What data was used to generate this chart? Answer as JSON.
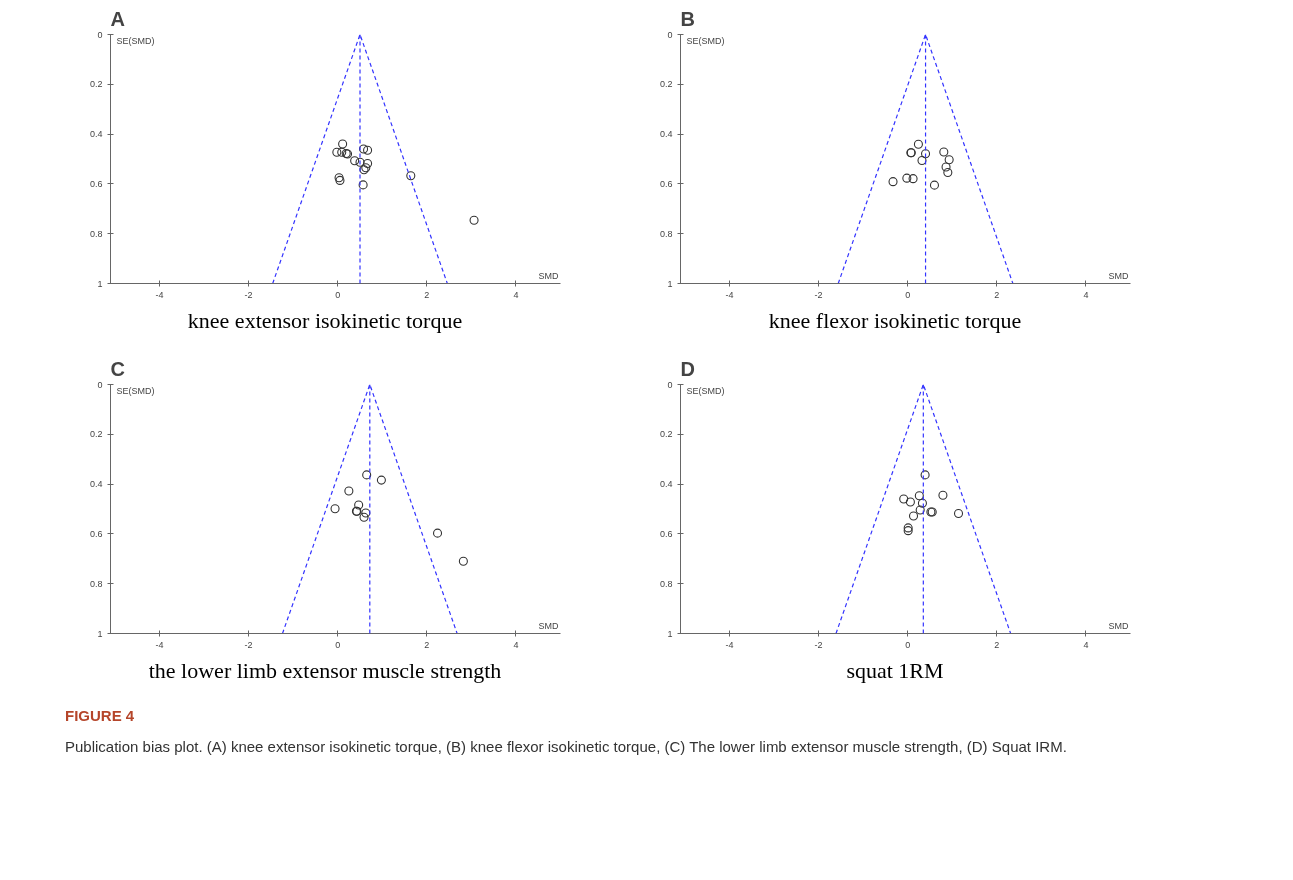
{
  "chart_data": [
    {
      "type": "scatter",
      "title": "A",
      "xlabel": "SMD",
      "ylabel": "SE(SMD)",
      "annotations": [
        "knee extensor isokinetic torque"
      ],
      "xlim": [
        -5.1,
        5
      ],
      "ylim": [
        1,
        0
      ],
      "xticks": [
        -4,
        -2,
        0,
        2,
        4
      ],
      "yticks": [
        0,
        0.2,
        0.4,
        0.6,
        0.8,
        1
      ],
      "grid": false,
      "series": [
        {
          "marker": "circle",
          "color": "#333333",
          "x": [
            0.11,
            -0.02,
            0.09,
            0.19,
            0.22,
            0.58,
            0.67,
            0.38,
            0.5,
            0.67,
            0.63,
            0.59,
            0.03,
            0.05,
            0.57,
            1.64,
            3.06
          ],
          "values": [
            0.44,
            0.473,
            0.473,
            0.478,
            0.48,
            0.46,
            0.465,
            0.507,
            0.513,
            0.518,
            0.535,
            0.543,
            0.575,
            0.586,
            0.604,
            0.567,
            0.746
          ]
        },
        {
          "type": "line",
          "color": "#3333ff",
          "line_style": "dashed",
          "x": [
            -1.46,
            0.5,
            2.46
          ],
          "values": [
            1,
            0,
            1
          ]
        }
      ],
      "ref_lines": [
        {
          "axis": "x",
          "value": 0.5,
          "color": "#3333ff",
          "line_style": "dashed"
        }
      ]
    },
    {
      "type": "scatter",
      "title": "B",
      "xlabel": "SMD",
      "ylabel": "SE(SMD)",
      "annotations": [
        "knee flexor isokinetic torque"
      ],
      "xlim": [
        -5.1,
        5
      ],
      "ylim": [
        1,
        0
      ],
      "xticks": [
        -4,
        -2,
        0,
        2,
        4
      ],
      "yticks": [
        0,
        0.2,
        0.4,
        0.6,
        0.8,
        1
      ],
      "grid": false,
      "series": [
        {
          "marker": "circle",
          "color": "#333333",
          "x": [
            0.24,
            0.07,
            0.08,
            0.4,
            0.32,
            0.81,
            0.93,
            0.86,
            0.9,
            -0.33,
            -0.02,
            0.12,
            0.6
          ],
          "values": [
            0.441,
            0.475,
            0.475,
            0.479,
            0.506,
            0.472,
            0.503,
            0.532,
            0.554,
            0.591,
            0.577,
            0.579,
            0.605
          ]
        },
        {
          "type": "line",
          "color": "#3333ff",
          "line_style": "dashed",
          "x": [
            -1.56,
            0.4,
            2.36
          ],
          "values": [
            1,
            0,
            1
          ]
        }
      ],
      "ref_lines": [
        {
          "axis": "x",
          "value": 0.4,
          "color": "#3333ff",
          "line_style": "dashed"
        }
      ]
    },
    {
      "type": "scatter",
      "title": "C",
      "xlabel": "SMD",
      "ylabel": "SE(SMD)",
      "annotations": [
        "the lower limb extensor muscle strength"
      ],
      "xlim": [
        -5.1,
        5
      ],
      "ylim": [
        1,
        0
      ],
      "xticks": [
        -4,
        -2,
        0,
        2,
        4
      ],
      "yticks": [
        0,
        0.2,
        0.4,
        0.6,
        0.8,
        1
      ],
      "grid": false,
      "series": [
        {
          "marker": "circle",
          "color": "#333333",
          "x": [
            0.65,
            0.98,
            0.25,
            -0.06,
            0.47,
            0.42,
            0.43,
            0.63,
            0.59,
            2.24,
            2.82
          ],
          "values": [
            0.363,
            0.384,
            0.428,
            0.499,
            0.484,
            0.509,
            0.509,
            0.516,
            0.533,
            0.597,
            0.71
          ]
        },
        {
          "type": "line",
          "color": "#3333ff",
          "line_style": "dashed",
          "x": [
            -1.24,
            0.72,
            2.68
          ],
          "values": [
            1,
            0,
            1
          ]
        }
      ],
      "ref_lines": [
        {
          "axis": "x",
          "value": 0.72,
          "color": "#3333ff",
          "line_style": "dashed"
        }
      ]
    },
    {
      "type": "scatter",
      "title": "D",
      "xlabel": "SMD",
      "ylabel": "SE(SMD)",
      "annotations": [
        "squat 1RM"
      ],
      "xlim": [
        -5.1,
        5
      ],
      "ylim": [
        1,
        0
      ],
      "xticks": [
        -4,
        -2,
        0,
        2,
        4
      ],
      "yticks": [
        0,
        0.2,
        0.4,
        0.6,
        0.8,
        1
      ],
      "grid": false,
      "series": [
        {
          "marker": "circle",
          "color": "#333333",
          "x": [
            0.39,
            0.26,
            0.79,
            -0.09,
            0.06,
            0.33,
            0.28,
            0.52,
            0.55,
            1.14,
            0.13,
            0.01,
            0.01
          ],
          "values": [
            0.363,
            0.447,
            0.445,
            0.46,
            0.472,
            0.477,
            0.504,
            0.512,
            0.512,
            0.518,
            0.528,
            0.576,
            0.587
          ]
        },
        {
          "type": "line",
          "color": "#3333ff",
          "line_style": "dashed",
          "x": [
            -1.61,
            0.35,
            2.31
          ],
          "values": [
            1,
            0,
            1
          ]
        }
      ],
      "ref_lines": [
        {
          "axis": "x",
          "value": 0.35,
          "color": "#3333ff",
          "line_style": "dashed"
        }
      ]
    },
    {
      "type": "other",
      "title": "FIGURE 4",
      "annotations": [
        "Publication bias plot. (A) knee extensor isokinetic torque, (B) knee flexor isokinetic torque, (C) The lower limb extensor muscle strength, (D) Squat IRM."
      ]
    }
  ]
}
